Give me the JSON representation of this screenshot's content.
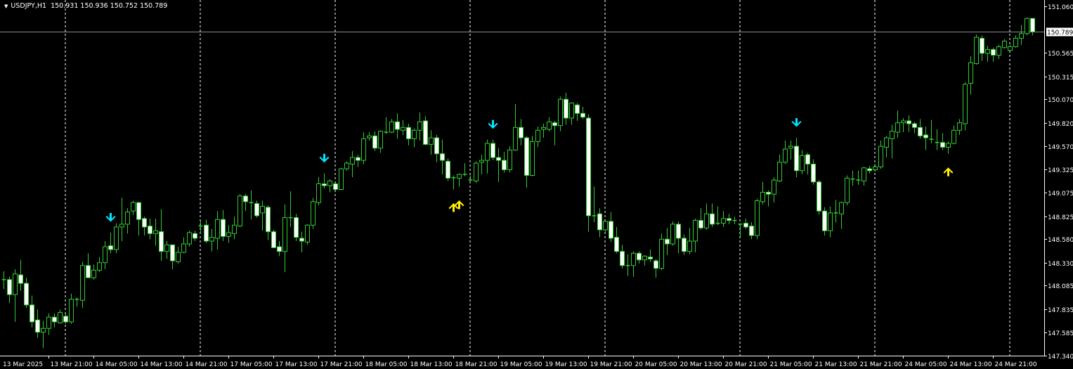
{
  "header": {
    "menu_icon": "triangle-down-icon",
    "symbol": "USDJPY,H1",
    "open": "150.931",
    "high": "150.936",
    "low": "150.752",
    "close": "150.789"
  },
  "colors": {
    "background": "#000000",
    "candle_outline": "#33cc33",
    "bull_body": "#000000",
    "bear_body": "#ffffff",
    "grid_separator": "#ffffff",
    "bid_line": "#8c8c9c",
    "signal_down": "#00e5ff",
    "signal_up": "#ffee00"
  },
  "chart_data": {
    "type": "candlestick",
    "symbol": "USDJPY",
    "timeframe": "H1",
    "ylim": [
      147.34,
      151.06
    ],
    "current_price": "150.789",
    "price_ticks": [
      "151.060",
      "150.789",
      "150.565",
      "150.315",
      "150.070",
      "149.820",
      "149.570",
      "149.325",
      "149.075",
      "148.825",
      "148.580",
      "148.330",
      "148.085",
      "147.835",
      "147.585",
      "147.340"
    ],
    "time_labels": [
      {
        "bar": 0,
        "label": "13 Mar 2025"
      },
      {
        "bar": 8,
        "label": "13 Mar 21:00"
      },
      {
        "bar": 16,
        "label": "14 Mar 05:00"
      },
      {
        "bar": 24,
        "label": "14 Mar 13:00"
      },
      {
        "bar": 32,
        "label": "14 Mar 21:00"
      },
      {
        "bar": 40,
        "label": "17 Mar 05:00"
      },
      {
        "bar": 48,
        "label": "17 Mar 13:00"
      },
      {
        "bar": 56,
        "label": "17 Mar 21:00"
      },
      {
        "bar": 64,
        "label": "18 Mar 05:00"
      },
      {
        "bar": 72,
        "label": "18 Mar 13:00"
      },
      {
        "bar": 80,
        "label": "18 Mar 21:00"
      },
      {
        "bar": 88,
        "label": "19 Mar 05:00"
      },
      {
        "bar": 96,
        "label": "19 Mar 13:00"
      },
      {
        "bar": 104,
        "label": "19 Mar 21:00"
      },
      {
        "bar": 112,
        "label": "20 Mar 05:00"
      },
      {
        "bar": 120,
        "label": "20 Mar 13:00"
      },
      {
        "bar": 128,
        "label": "20 Mar 21:00"
      },
      {
        "bar": 136,
        "label": "21 Mar 05:00"
      },
      {
        "bar": 144,
        "label": "21 Mar 13:00"
      },
      {
        "bar": 152,
        "label": "21 Mar 21:00"
      },
      {
        "bar": 160,
        "label": "24 Mar 05:00"
      },
      {
        "bar": 168,
        "label": "24 Mar 13:00"
      },
      {
        "bar": 176,
        "label": "24 Mar 21:00"
      }
    ],
    "day_separators_after_bar": [
      11,
      35,
      59,
      83,
      107,
      131,
      155,
      179
    ],
    "signals": [
      {
        "bar": 19,
        "direction": "down"
      },
      {
        "bar": 57,
        "direction": "down"
      },
      {
        "bar": 87,
        "direction": "down"
      },
      {
        "bar": 141,
        "direction": "down"
      },
      {
        "bar": 80,
        "direction": "up"
      },
      {
        "bar": 81,
        "direction": "up"
      },
      {
        "bar": 168,
        "direction": "up"
      }
    ],
    "ohlc": [
      [
        148.15,
        148.24,
        148.05,
        148.15
      ],
      [
        148.15,
        148.18,
        147.9,
        147.99
      ],
      [
        147.99,
        148.26,
        147.7,
        148.21
      ],
      [
        148.2,
        148.36,
        148.03,
        148.11
      ],
      [
        148.11,
        148.17,
        147.85,
        147.88
      ],
      [
        147.88,
        147.98,
        147.64,
        147.7
      ],
      [
        147.72,
        147.83,
        147.53,
        147.59
      ],
      [
        147.59,
        147.71,
        147.42,
        147.63
      ],
      [
        147.63,
        147.79,
        147.56,
        147.75
      ],
      [
        147.75,
        147.79,
        147.64,
        147.7
      ],
      [
        147.69,
        147.83,
        147.68,
        147.8
      ],
      [
        147.76,
        147.79,
        147.68,
        147.7
      ],
      [
        147.7,
        148.0,
        147.68,
        147.94
      ],
      [
        147.94,
        147.96,
        147.86,
        147.94
      ],
      [
        147.93,
        148.34,
        147.85,
        148.3
      ],
      [
        148.3,
        148.43,
        148.17,
        148.17
      ],
      [
        148.17,
        148.31,
        148.15,
        148.25
      ],
      [
        148.25,
        148.39,
        148.23,
        148.33
      ],
      [
        148.33,
        148.56,
        148.26,
        148.5
      ],
      [
        148.51,
        148.65,
        148.43,
        148.47
      ],
      [
        148.47,
        148.75,
        148.43,
        148.71
      ],
      [
        148.71,
        149.02,
        148.56,
        148.74
      ],
      [
        148.74,
        148.91,
        148.64,
        148.87
      ],
      [
        148.88,
        148.99,
        148.84,
        148.97
      ],
      [
        148.97,
        148.98,
        148.62,
        148.79
      ],
      [
        148.8,
        148.82,
        148.62,
        148.71
      ],
      [
        148.72,
        148.8,
        148.58,
        148.64
      ],
      [
        148.64,
        148.8,
        148.51,
        148.67
      ],
      [
        148.66,
        148.9,
        148.35,
        148.45
      ],
      [
        148.45,
        148.56,
        148.37,
        148.52
      ],
      [
        148.52,
        148.52,
        148.26,
        148.35
      ],
      [
        148.34,
        148.5,
        148.32,
        148.44
      ],
      [
        148.44,
        148.6,
        148.43,
        148.53
      ],
      [
        148.53,
        148.67,
        148.5,
        148.65
      ],
      [
        148.64,
        148.67,
        148.56,
        148.59
      ],
      [
        148.72,
        148.79,
        148.65,
        148.72
      ],
      [
        148.73,
        148.79,
        148.54,
        148.56
      ],
      [
        148.56,
        148.69,
        148.45,
        148.6
      ],
      [
        148.59,
        148.88,
        148.47,
        148.79
      ],
      [
        148.79,
        148.89,
        148.56,
        148.61
      ],
      [
        148.61,
        148.73,
        148.54,
        148.65
      ],
      [
        148.64,
        148.82,
        148.58,
        148.73
      ],
      [
        148.72,
        149.06,
        148.71,
        149.04
      ],
      [
        149.04,
        149.06,
        148.88,
        148.98
      ],
      [
        148.97,
        149.1,
        148.79,
        148.97
      ],
      [
        148.96,
        148.99,
        148.81,
        148.83
      ],
      [
        148.86,
        148.99,
        148.67,
        148.93
      ],
      [
        148.92,
        148.94,
        148.57,
        148.66
      ],
      [
        148.66,
        148.68,
        148.49,
        148.49
      ],
      [
        148.5,
        148.56,
        148.4,
        148.45
      ],
      [
        148.45,
        148.95,
        148.23,
        148.81
      ],
      [
        148.81,
        149.09,
        148.71,
        148.81
      ],
      [
        148.81,
        148.85,
        148.56,
        148.6
      ],
      [
        148.59,
        148.66,
        148.44,
        148.56
      ],
      [
        148.55,
        148.74,
        148.52,
        148.73
      ],
      [
        148.73,
        149.02,
        148.69,
        148.98
      ],
      [
        148.97,
        149.24,
        148.94,
        149.17
      ],
      [
        149.17,
        149.28,
        149.12,
        149.15
      ],
      [
        149.15,
        149.22,
        149.08,
        149.2
      ],
      [
        149.17,
        149.19,
        149.08,
        149.11
      ],
      [
        149.11,
        149.34,
        149.1,
        149.33
      ],
      [
        149.33,
        149.41,
        149.31,
        149.39
      ],
      [
        149.38,
        149.52,
        149.24,
        149.45
      ],
      [
        149.45,
        149.48,
        149.35,
        149.42
      ],
      [
        149.42,
        149.72,
        149.38,
        149.65
      ],
      [
        149.66,
        149.72,
        149.63,
        149.68
      ],
      [
        149.68,
        149.73,
        149.52,
        149.55
      ],
      [
        149.55,
        149.74,
        149.5,
        149.73
      ],
      [
        149.72,
        149.88,
        149.7,
        149.72
      ],
      [
        149.72,
        149.86,
        149.71,
        149.83
      ],
      [
        149.83,
        149.92,
        149.65,
        149.75
      ],
      [
        149.74,
        149.85,
        149.69,
        149.77
      ],
      [
        149.77,
        149.81,
        149.58,
        149.65
      ],
      [
        149.65,
        149.76,
        149.56,
        149.74
      ],
      [
        149.74,
        149.93,
        149.63,
        149.83
      ],
      [
        149.84,
        149.89,
        149.58,
        149.59
      ],
      [
        149.59,
        149.74,
        149.48,
        149.66
      ],
      [
        149.66,
        149.69,
        149.4,
        149.49
      ],
      [
        149.49,
        149.64,
        149.27,
        149.42
      ],
      [
        149.41,
        149.44,
        149.2,
        149.23
      ],
      [
        149.24,
        149.26,
        149.11,
        149.23
      ],
      [
        149.23,
        149.28,
        149.14,
        149.27
      ],
      [
        149.27,
        149.39,
        149.25,
        149.27
      ],
      [
        149.21,
        149.26,
        149.19,
        149.21
      ],
      [
        149.2,
        149.41,
        149.18,
        149.39
      ],
      [
        149.4,
        149.48,
        149.27,
        149.42
      ],
      [
        149.42,
        149.64,
        149.28,
        149.6
      ],
      [
        149.6,
        149.64,
        149.42,
        149.45
      ],
      [
        149.45,
        149.55,
        149.19,
        149.42
      ],
      [
        149.42,
        149.51,
        149.29,
        149.32
      ],
      [
        149.32,
        149.57,
        149.29,
        149.53
      ],
      [
        149.53,
        150.02,
        149.52,
        149.77
      ],
      [
        149.77,
        149.86,
        149.58,
        149.66
      ],
      [
        149.66,
        149.68,
        149.13,
        149.26
      ],
      [
        149.26,
        149.68,
        149.25,
        149.62
      ],
      [
        149.62,
        149.78,
        149.56,
        149.74
      ],
      [
        149.75,
        149.81,
        149.66,
        149.77
      ],
      [
        149.75,
        149.88,
        149.73,
        149.83
      ],
      [
        149.82,
        149.84,
        149.58,
        149.79
      ],
      [
        149.79,
        150.1,
        149.73,
        150.07
      ],
      [
        150.07,
        150.14,
        149.8,
        149.87
      ],
      [
        149.87,
        150.04,
        149.8,
        150.03
      ],
      [
        150.01,
        150.03,
        149.84,
        149.92
      ],
      [
        149.92,
        149.99,
        149.86,
        149.88
      ],
      [
        149.87,
        149.91,
        148.66,
        148.83
      ],
      [
        148.83,
        149.14,
        148.76,
        148.83
      ],
      [
        148.85,
        148.91,
        148.6,
        148.68
      ],
      [
        148.68,
        148.78,
        148.66,
        148.77
      ],
      [
        148.77,
        148.87,
        148.55,
        148.59
      ],
      [
        148.6,
        148.71,
        148.43,
        148.45
      ],
      [
        148.45,
        148.52,
        148.27,
        148.3
      ],
      [
        148.3,
        148.42,
        148.19,
        148.3
      ],
      [
        148.3,
        148.45,
        148.18,
        148.43
      ],
      [
        148.43,
        148.45,
        148.32,
        148.36
      ],
      [
        148.36,
        148.41,
        148.3,
        148.4
      ],
      [
        148.39,
        148.47,
        148.34,
        148.37
      ],
      [
        148.35,
        148.37,
        148.17,
        148.27
      ],
      [
        148.27,
        148.64,
        148.25,
        148.58
      ],
      [
        148.58,
        148.7,
        148.41,
        148.53
      ],
      [
        148.53,
        148.77,
        148.51,
        148.74
      ],
      [
        148.74,
        148.77,
        148.43,
        148.59
      ],
      [
        148.59,
        148.63,
        148.41,
        148.45
      ],
      [
        148.45,
        148.7,
        148.42,
        148.56
      ],
      [
        148.56,
        148.8,
        148.44,
        148.78
      ],
      [
        148.78,
        148.91,
        148.68,
        148.7
      ],
      [
        148.7,
        148.96,
        148.68,
        148.85
      ],
      [
        148.85,
        148.96,
        148.71,
        148.74
      ],
      [
        148.75,
        148.93,
        148.73,
        148.75
      ],
      [
        148.75,
        148.88,
        148.71,
        148.8
      ],
      [
        148.8,
        148.85,
        148.74,
        148.78
      ],
      [
        148.78,
        148.82,
        148.74,
        148.78
      ],
      [
        148.74,
        148.75,
        148.59,
        148.74
      ],
      [
        148.75,
        148.8,
        148.69,
        148.71
      ],
      [
        148.72,
        148.76,
        148.58,
        148.62
      ],
      [
        148.62,
        149.01,
        148.58,
        148.99
      ],
      [
        148.98,
        149.19,
        148.95,
        149.08
      ],
      [
        149.08,
        149.1,
        148.93,
        149.06
      ],
      [
        149.06,
        149.24,
        148.97,
        149.21
      ],
      [
        149.2,
        149.48,
        149.19,
        149.4
      ],
      [
        149.4,
        149.63,
        149.38,
        149.54
      ],
      [
        149.55,
        149.63,
        149.43,
        149.57
      ],
      [
        149.57,
        149.66,
        149.24,
        149.31
      ],
      [
        149.31,
        149.53,
        149.27,
        149.47
      ],
      [
        149.48,
        149.5,
        149.27,
        149.38
      ],
      [
        149.38,
        149.43,
        149.16,
        149.19
      ],
      [
        149.19,
        149.21,
        148.84,
        148.88
      ],
      [
        148.88,
        148.92,
        148.62,
        148.67
      ],
      [
        148.67,
        148.93,
        148.6,
        148.86
      ],
      [
        148.86,
        149.0,
        148.76,
        148.86
      ],
      [
        148.85,
        148.98,
        148.69,
        148.97
      ],
      [
        148.97,
        149.26,
        148.94,
        149.23
      ],
      [
        149.22,
        149.31,
        149.15,
        149.22
      ],
      [
        149.21,
        149.31,
        149.16,
        149.21
      ],
      [
        149.2,
        149.35,
        149.15,
        149.34
      ],
      [
        149.33,
        149.36,
        149.28,
        149.31
      ],
      [
        149.32,
        149.38,
        149.3,
        149.35
      ],
      [
        149.35,
        149.63,
        149.33,
        149.57
      ],
      [
        149.56,
        149.68,
        149.45,
        149.66
      ],
      [
        149.65,
        149.8,
        149.44,
        149.73
      ],
      [
        149.72,
        149.95,
        149.66,
        149.82
      ],
      [
        149.82,
        149.87,
        149.72,
        149.84
      ],
      [
        149.84,
        149.9,
        149.72,
        149.81
      ],
      [
        149.81,
        149.83,
        149.71,
        149.77
      ],
      [
        149.77,
        149.86,
        149.65,
        149.68
      ],
      [
        149.69,
        149.78,
        149.53,
        149.66
      ],
      [
        149.65,
        149.85,
        149.6,
        149.64
      ],
      [
        149.61,
        149.75,
        149.53,
        149.61
      ],
      [
        149.61,
        149.71,
        149.53,
        149.56
      ],
      [
        149.56,
        149.62,
        149.49,
        149.6
      ],
      [
        149.6,
        149.79,
        149.59,
        149.74
      ],
      [
        149.74,
        149.86,
        149.69,
        149.82
      ],
      [
        149.81,
        150.25,
        149.74,
        150.23
      ],
      [
        150.24,
        150.53,
        150.12,
        150.46
      ],
      [
        150.45,
        150.76,
        150.44,
        150.73
      ],
      [
        150.72,
        150.75,
        150.48,
        150.56
      ],
      [
        150.56,
        150.64,
        150.47,
        150.6
      ],
      [
        150.6,
        150.62,
        150.47,
        150.54
      ],
      [
        150.54,
        150.65,
        150.5,
        150.63
      ],
      [
        150.62,
        150.71,
        150.61,
        150.69
      ],
      [
        150.59,
        150.65,
        150.58,
        150.63
      ],
      [
        150.63,
        150.75,
        150.62,
        150.72
      ],
      [
        150.72,
        150.86,
        150.65,
        150.77
      ],
      [
        150.77,
        150.94,
        150.75,
        150.93
      ],
      [
        150.931,
        150.936,
        150.752,
        150.789
      ]
    ]
  }
}
